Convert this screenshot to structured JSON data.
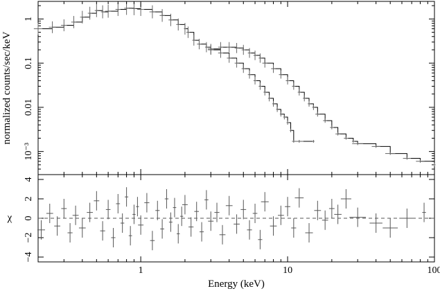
{
  "chart_data": [
    {
      "type": "scatter",
      "panel": "spectrum",
      "title": "",
      "xlabel": "Energy (keV)",
      "ylabel": "normalized counts/sec/keV",
      "x_scale": "log",
      "y_scale": "log",
      "xlim": [
        0.2,
        100
      ],
      "ylim": [
        0.0003,
        2.5
      ],
      "x_ticks": [
        {
          "value": 1,
          "label": "1"
        },
        {
          "value": 10,
          "label": "10"
        },
        {
          "value": 100,
          "label": "100"
        }
      ],
      "y_ticks": [
        {
          "value": 1,
          "label": "1"
        },
        {
          "value": 0.1,
          "label": "0.1"
        },
        {
          "value": 0.01,
          "label": "0.01"
        },
        {
          "value": 0.001,
          "label": "10⁻³"
        }
      ],
      "grid": false,
      "series": [
        {
          "style": "step-model-with-data",
          "color": "#000000",
          "x": [
            0.2,
            0.25,
            0.3,
            0.35,
            0.4,
            0.45,
            0.5,
            0.55,
            0.6,
            0.7,
            0.8,
            0.9,
            1.0,
            1.2,
            1.4,
            1.6,
            1.8,
            2.0,
            2.1,
            2.3,
            2.5,
            2.8,
            3.0,
            3.5,
            4.0,
            4.5,
            5.0,
            5.5,
            6.0,
            6.5,
            7.0,
            7.5,
            8.0,
            8.5,
            9.0,
            9.5,
            10.0,
            10.5,
            11.0,
            12.0,
            15.0
          ],
          "y": [
            0.6,
            0.65,
            0.72,
            0.85,
            1.1,
            1.35,
            1.55,
            1.45,
            1.5,
            1.65,
            1.75,
            1.72,
            1.65,
            1.45,
            1.2,
            0.95,
            0.75,
            0.6,
            0.5,
            0.33,
            0.27,
            0.23,
            0.2,
            0.17,
            0.13,
            0.1,
            0.075,
            0.055,
            0.04,
            0.03,
            0.022,
            0.016,
            0.012,
            0.009,
            0.007,
            0.006,
            0.0045,
            0.003,
            0.0017,
            0.0017,
            0.0017
          ]
        },
        {
          "style": "step-model-with-data",
          "color": "#000000",
          "x": [
            3.0,
            3.5,
            4.0,
            4.5,
            5.0,
            5.5,
            6.0,
            6.5,
            7.0,
            8.0,
            9.0,
            10.0,
            11.0,
            12.0,
            13.0,
            14.0,
            15.0,
            16.0,
            18.0,
            20.0,
            22.0,
            25.0,
            28.0,
            30.0,
            40.0,
            50.0,
            65.0,
            80.0,
            100.0
          ],
          "y": [
            0.21,
            0.23,
            0.23,
            0.22,
            0.2,
            0.17,
            0.15,
            0.13,
            0.1,
            0.075,
            0.055,
            0.04,
            0.03,
            0.022,
            0.016,
            0.012,
            0.01,
            0.007,
            0.005,
            0.0035,
            0.0025,
            0.002,
            0.0017,
            0.0015,
            0.0013,
            0.0009,
            0.0007,
            0.0006,
            0.0005
          ]
        }
      ]
    },
    {
      "type": "scatter",
      "panel": "residuals",
      "title": "",
      "xlabel": "Energy (keV)",
      "ylabel": "χ",
      "x_scale": "log",
      "y_scale": "linear",
      "xlim": [
        0.2,
        100
      ],
      "ylim": [
        -4.5,
        4.5
      ],
      "y_ticks": [
        {
          "value": 4,
          "label": "4"
        },
        {
          "value": 2,
          "label": "2"
        },
        {
          "value": 0,
          "label": "0"
        },
        {
          "value": -2,
          "label": "−2"
        },
        {
          "value": -4,
          "label": "−4"
        }
      ],
      "reference_line": 0,
      "grid": false,
      "series": [
        {
          "style": "error-bars",
          "color": "#555555",
          "x": [
            0.21,
            0.24,
            0.27,
            0.3,
            0.33,
            0.36,
            0.4,
            0.45,
            0.5,
            0.55,
            0.6,
            0.65,
            0.7,
            0.75,
            0.8,
            0.85,
            0.9,
            0.95,
            1.0,
            1.1,
            1.2,
            1.3,
            1.4,
            1.5,
            1.6,
            1.7,
            1.8,
            1.9,
            2.0,
            2.2,
            2.4,
            2.6,
            2.8,
            3.0,
            3.3,
            3.6,
            4.0,
            4.5,
            5.0,
            5.5,
            6.0,
            6.5,
            7.0,
            8.0,
            9.0,
            10.0,
            11.0,
            12.0,
            14.0,
            16.0,
            18.0,
            20.0,
            22.0,
            25.0,
            30.0,
            40.0,
            50.0,
            65.0,
            85.0
          ],
          "y": [
            -1.2,
            0.5,
            -0.8,
            1.0,
            -1.5,
            0.3,
            -1.0,
            0.6,
            1.8,
            -1.3,
            0.9,
            -2.0,
            1.5,
            -0.5,
            2.2,
            -1.8,
            0.4,
            1.2,
            -0.7,
            1.6,
            -2.3,
            0.8,
            -1.1,
            2.0,
            -0.4,
            1.1,
            -1.6,
            0.2,
            1.4,
            -0.9,
            0.7,
            -1.4,
            1.9,
            -0.3,
            0.6,
            -1.7,
            1.3,
            -0.6,
            0.9,
            -1.2,
            0.5,
            -2.2,
            1.7,
            -0.8,
            0.3,
            1.2,
            -1.0,
            2.1,
            -1.5,
            0.8,
            -0.2,
            1.0,
            0.4,
            2.0,
            0.1,
            -0.5,
            -1.0,
            0.0,
            0.6
          ]
        }
      ]
    }
  ]
}
